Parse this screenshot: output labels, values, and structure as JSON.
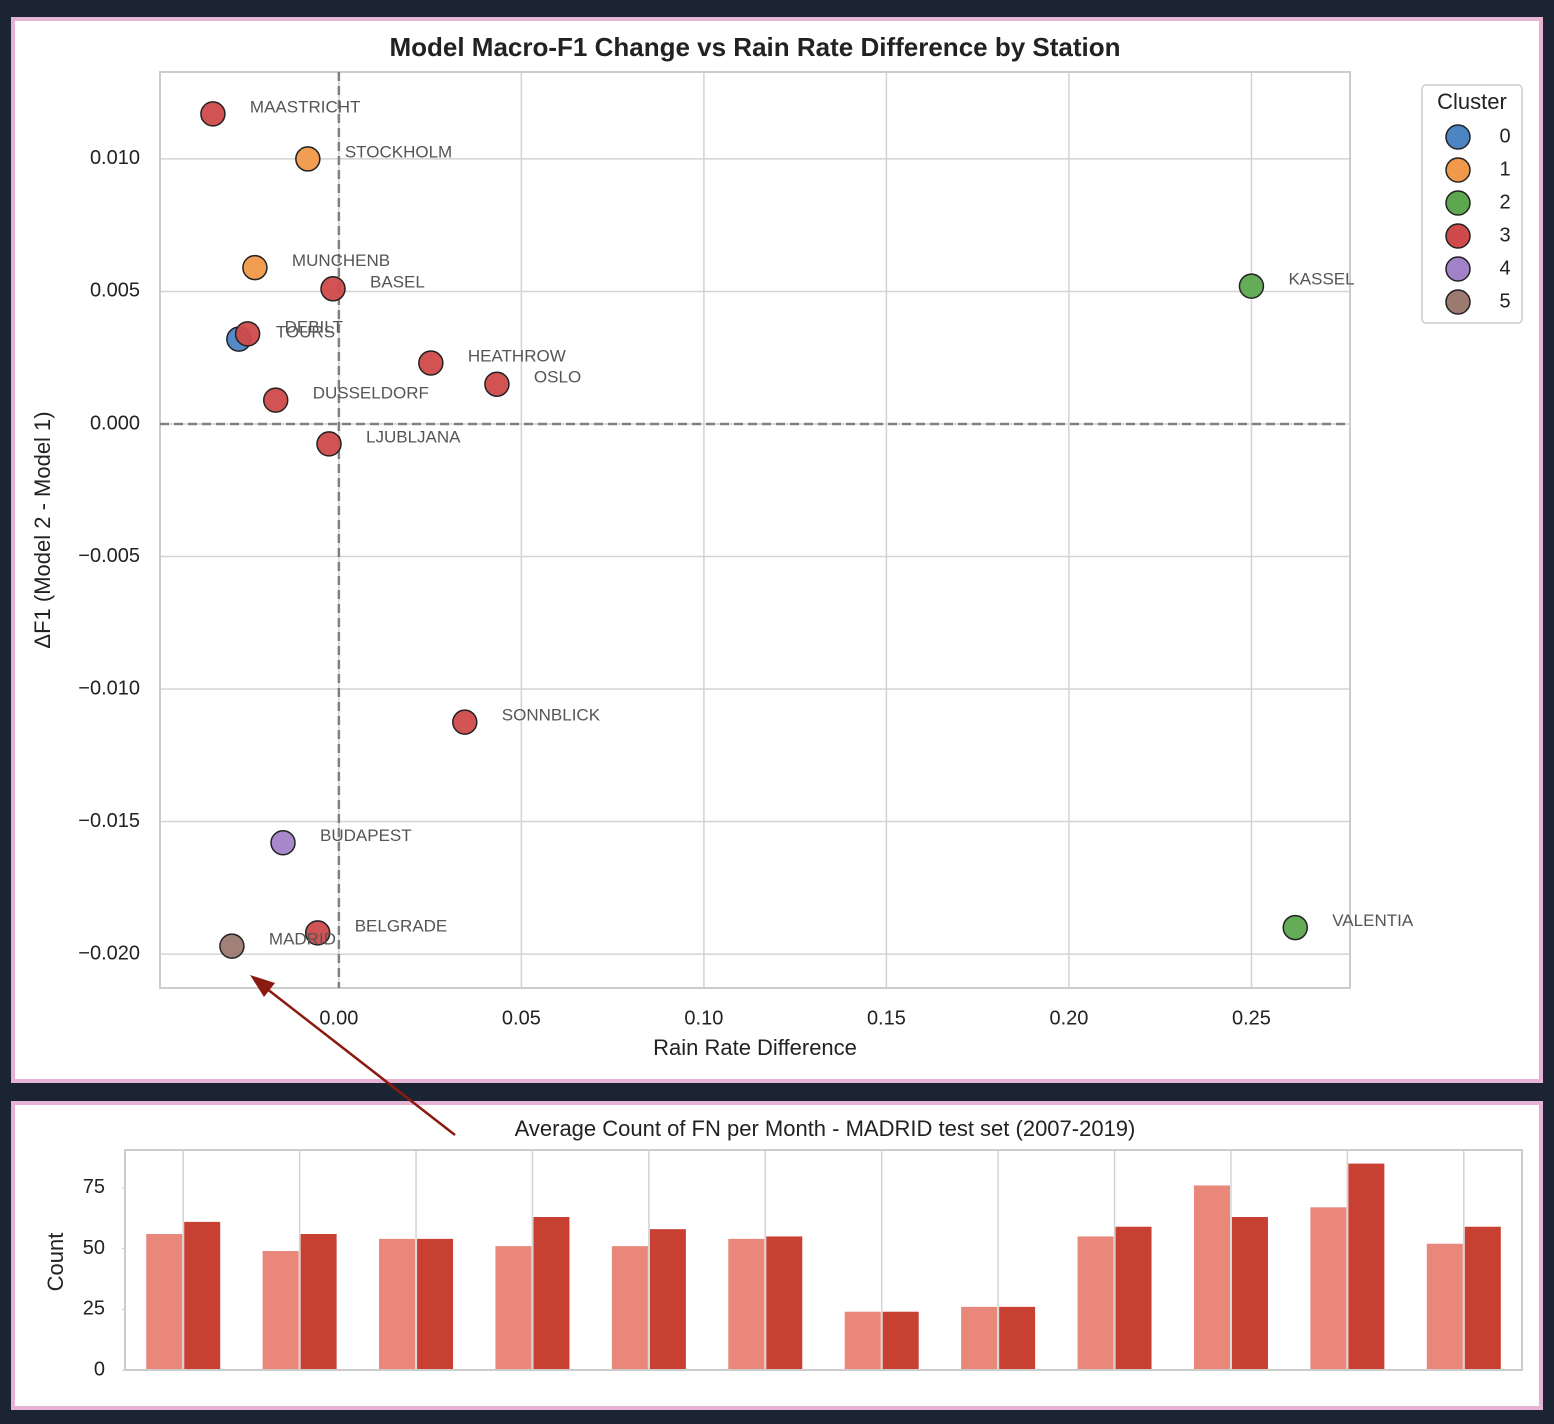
{
  "chart_data": [
    {
      "type": "scatter",
      "title": "Model Macro-F1 Change vs Rain Rate Difference by Station",
      "x_label": "Rain Rate Difference",
      "y_label": "ΔF1 (Model 2 - Model 1)",
      "legend_title": "Cluster",
      "legend": "upper right",
      "grid": true,
      "reference_lines": {
        "x": 0,
        "y": 0
      },
      "xlim": [
        -0.049,
        0.277
      ],
      "ylim": [
        -0.02128,
        0.01328
      ],
      "xticks": [
        {
          "value": 0,
          "label": "0.00"
        },
        {
          "value": 0.05,
          "label": "0.05"
        },
        {
          "value": 0.1,
          "label": "0.10"
        },
        {
          "value": 0.15,
          "label": "0.15"
        },
        {
          "value": 0.2,
          "label": "0.20"
        },
        {
          "value": 0.25,
          "label": "0.25"
        }
      ],
      "yticks": [
        {
          "value": 0.01,
          "label": "0.010"
        },
        {
          "value": 0.005,
          "label": "0.005"
        },
        {
          "value": 0,
          "label": "0.000"
        },
        {
          "value": -0.005,
          "label": "−0.005"
        },
        {
          "value": -0.01,
          "label": "−0.010"
        },
        {
          "value": -0.015,
          "label": "−0.015"
        },
        {
          "value": -0.02,
          "label": "−0.020"
        }
      ],
      "series": [
        {
          "name": "0",
          "color": "#4c84c4",
          "labels": [
            "TOURS"
          ],
          "x": [
            -0.0274
          ],
          "values": [
            0.0032
          ]
        },
        {
          "name": "1",
          "color": "#f0994a",
          "labels": [
            "STOCKHOLM",
            "MUNCHENB"
          ],
          "x": [
            -0.0085,
            -0.023
          ],
          "values": [
            0.01,
            0.0059
          ]
        },
        {
          "name": "2",
          "color": "#5da84f",
          "labels": [
            "KASSEL",
            "VALENTIA"
          ],
          "x": [
            0.25,
            0.262
          ],
          "values": [
            0.0052,
            -0.019
          ]
        },
        {
          "name": "3",
          "color": "#cf4a4a",
          "labels": [
            "MAASTRICHT",
            "BASEL",
            "DEBILT",
            "HEATHROW",
            "OSLO",
            "DUSSELDORF",
            "LJUBLJANA",
            "SONNBLICK",
            "BELGRADE"
          ],
          "x": [
            -0.0345,
            -0.0016,
            -0.025,
            0.0252,
            0.0433,
            -0.0173,
            -0.0027,
            0.0345,
            -0.0058
          ],
          "values": [
            0.0117,
            0.0051,
            0.0034,
            0.0023,
            0.0015,
            0.0009,
            -0.00075,
            -0.01125,
            -0.0192
          ]
        },
        {
          "name": "4",
          "color": "#a182c8",
          "labels": [
            "BUDAPEST"
          ],
          "x": [
            -0.0153
          ],
          "values": [
            -0.0158
          ]
        },
        {
          "name": "5",
          "color": "#9c7a70",
          "labels": [
            "MADRID"
          ],
          "x": [
            -0.0293
          ],
          "values": [
            -0.0197
          ]
        }
      ]
    },
    {
      "type": "bar",
      "title": "Average Count of FN per Month - MADRID test set (2007-2019)",
      "y_label": "Count",
      "grid": "x",
      "categories": [
        null,
        null,
        null,
        null,
        null,
        null,
        null,
        null,
        null,
        null,
        null,
        null
      ],
      "ylim": [
        0,
        90.6
      ],
      "yticks": [
        0,
        25,
        50,
        75
      ],
      "series": [
        {
          "color": "#e8877a",
          "values": [
            56,
            49,
            54,
            51,
            51,
            54,
            24,
            26,
            55,
            76,
            67,
            52
          ]
        },
        {
          "color": "#c84032",
          "values": [
            61,
            56,
            54,
            63,
            58,
            55,
            24,
            26,
            59,
            63,
            85,
            59
          ]
        }
      ]
    }
  ]
}
